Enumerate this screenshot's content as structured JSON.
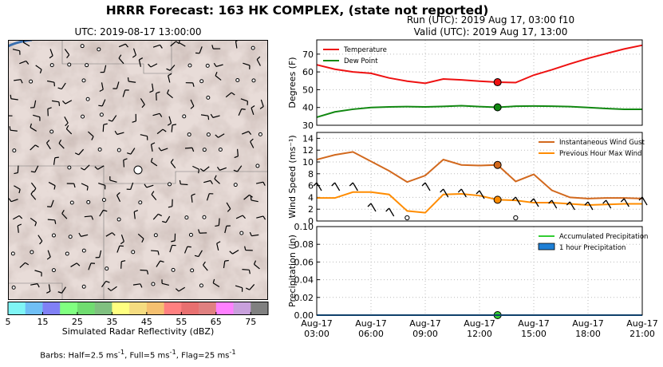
{
  "header": {
    "title": "HRRR Forecast: 163 HK COMPLEX, (state not reported)",
    "run_line": "Run (UTC): 2019 Aug 17, 03:00 f10",
    "valid_line": "Valid (UTC): 2019 Aug 17, 13:00"
  },
  "map": {
    "title": "UTC: 2019-08-17 13:00:00",
    "colorbar_label": "Simulated Radar Reflectivity (dBZ)",
    "colorbar_ticks": [
      "5",
      "15",
      "25",
      "35",
      "45",
      "55",
      "65",
      "75"
    ],
    "colorbar_colors": [
      "#7ff5f5",
      "#6fbff5",
      "#8080f5",
      "#80ff80",
      "#70dc70",
      "#80c080",
      "#ffff80",
      "#f5dc80",
      "#f5c070",
      "#ff8080",
      "#e87070",
      "#e08080",
      "#ff80ff",
      "#c8a0dc",
      "#808080"
    ],
    "barb_note_html": "Barbs: Half=2.5 ms<sup>-1</sup>, Full=5 ms<sup>-1</sup>, Flag=25 ms<sup>-1</sup>"
  },
  "chart_data": [
    {
      "type": "line",
      "ylabel": "Degrees (F)",
      "ylim": [
        30,
        78
      ],
      "yticks": [
        30,
        40,
        50,
        60,
        70
      ],
      "grid": true,
      "legend": "top-left",
      "x": [
        0,
        1,
        2,
        3,
        4,
        5,
        6,
        7,
        8,
        9,
        10,
        11,
        12,
        13,
        14,
        15,
        16,
        17,
        18
      ],
      "series": [
        {
          "name": "Temperature",
          "color": "#ee1111",
          "values": [
            64,
            61.5,
            60,
            59.2,
            56.6,
            54.8,
            53.6,
            56,
            55.5,
            54.8,
            54.2,
            54,
            58.2,
            61.2,
            64.5,
            67.6,
            70.3,
            72.9,
            75
          ]
        },
        {
          "name": "Dew Point",
          "color": "#118811",
          "values": [
            34.5,
            37.5,
            39,
            40,
            40.3,
            40.5,
            40.3,
            40.6,
            41,
            40.5,
            40.1,
            40.7,
            40.8,
            40.7,
            40.5,
            40,
            39.4,
            39,
            39
          ]
        }
      ],
      "marker_index": 10
    },
    {
      "type": "line",
      "ylabel": "Wind Speed (ms⁻¹)",
      "ylim": [
        0,
        15
      ],
      "yticks": [
        0,
        2,
        4,
        6,
        8,
        10,
        12,
        14
      ],
      "grid": true,
      "legend": "top-right",
      "x": [
        0,
        1,
        2,
        3,
        4,
        5,
        6,
        7,
        8,
        9,
        10,
        11,
        12,
        13,
        14,
        15,
        16,
        17,
        18
      ],
      "series": [
        {
          "name": "Instantaneous Wind Gust",
          "color": "#d2691e",
          "values": [
            10.4,
            11.2,
            11.7,
            10.1,
            8.5,
            6.6,
            7.7,
            10.4,
            9.5,
            9.4,
            9.5,
            6.7,
            7.9,
            5.2,
            4,
            3.8,
            3.9,
            3.9,
            3.8
          ]
        },
        {
          "name": "Previous Hour Max Wind",
          "color": "#ff8c00",
          "values": [
            3.9,
            3.9,
            4.9,
            4.9,
            4.5,
            1.7,
            1.4,
            4.5,
            4.6,
            4.3,
            3.6,
            3.5,
            3.1,
            3.1,
            2.9,
            2.7,
            2.8,
            2.9,
            2.9
          ]
        }
      ],
      "marker_index": 10
    },
    {
      "type": "area",
      "ylabel": "Precipitation (in)",
      "ylim": [
        0,
        0.1
      ],
      "yticks": [
        "0.00",
        "0.02",
        "0.04",
        "0.06",
        "0.08",
        "0.10"
      ],
      "grid": true,
      "legend": "top-right",
      "x": [
        0,
        1,
        2,
        3,
        4,
        5,
        6,
        7,
        8,
        9,
        10,
        11,
        12,
        13,
        14,
        15,
        16,
        17,
        18
      ],
      "series": [
        {
          "name": "Accumulated Precipitation",
          "color": "#33cc33",
          "values": [
            0,
            0,
            0,
            0,
            0,
            0,
            0,
            0,
            0,
            0,
            0,
            0,
            0,
            0,
            0,
            0,
            0,
            0,
            0
          ]
        },
        {
          "name": "1 hour Precipitation",
          "color": "#1e7fd6",
          "values": [
            0,
            0,
            0,
            0,
            0,
            0,
            0,
            0,
            0,
            0,
            0,
            0,
            0,
            0,
            0,
            0,
            0,
            0,
            0
          ]
        }
      ],
      "xtick_labels": [
        [
          "Aug-17",
          "03:00"
        ],
        [
          "Aug-17",
          "06:00"
        ],
        [
          "Aug-17",
          "09:00"
        ],
        [
          "Aug-17",
          "12:00"
        ],
        [
          "Aug-17",
          "15:00"
        ],
        [
          "Aug-17",
          "18:00"
        ],
        [
          "Aug-17",
          "21:00"
        ]
      ],
      "marker_index": 10
    }
  ]
}
